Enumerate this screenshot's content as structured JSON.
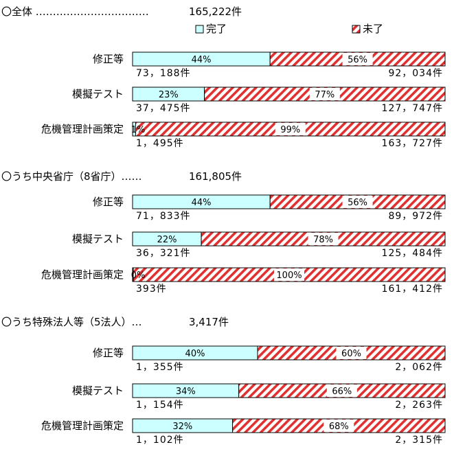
{
  "legend": {
    "done": "完了",
    "notdone": "未了"
  },
  "colors": {
    "done": "#ccffff",
    "notdone_stripe": "#e03030",
    "notdone_bg": "#ffffff",
    "border": "#000000"
  },
  "chart_data": {
    "type": "bar",
    "orientation": "horizontal",
    "stacked": "100%",
    "series_names": [
      "完了",
      "未了"
    ],
    "groups": [
      {
        "title": "〇全体 ……………………………",
        "total": "165,222件",
        "rows": [
          {
            "label": "修正等",
            "done_pct": 44,
            "done_pct_label": "44%",
            "notdone_pct_label": "56%",
            "done_count": "73，188件",
            "notdone_count": "92，034件"
          },
          {
            "label": "模擬テスト",
            "done_pct": 23,
            "done_pct_label": "23%",
            "notdone_pct_label": "77%",
            "done_count": "37，475件",
            "notdone_count": "127，747件"
          },
          {
            "label": "危機管理計画策定",
            "done_pct": 1,
            "done_pct_label": "1%",
            "notdone_pct_label": "99%",
            "done_count": "1，495件",
            "notdone_count": "163，727件"
          }
        ]
      },
      {
        "title": "〇うち中央省庁（8省庁）……",
        "total": "161,805件",
        "rows": [
          {
            "label": "修正等",
            "done_pct": 44,
            "done_pct_label": "44%",
            "notdone_pct_label": "56%",
            "done_count": "71，833件",
            "notdone_count": "89，972件"
          },
          {
            "label": "模擬テスト",
            "done_pct": 22,
            "done_pct_label": "22%",
            "notdone_pct_label": "78%",
            "done_count": "36，321件",
            "notdone_count": "125，484件"
          },
          {
            "label": "危機管理計画策定",
            "done_pct": 0,
            "done_pct_label": "0%",
            "notdone_pct_label": "100%",
            "done_count": "393件",
            "notdone_count": "161，412件"
          }
        ]
      },
      {
        "title": "〇うち特殊法人等（5法人）…",
        "total": "3,417件",
        "rows": [
          {
            "label": "修正等",
            "done_pct": 40,
            "done_pct_label": "40%",
            "notdone_pct_label": "60%",
            "done_count": "1，355件",
            "notdone_count": "2，062件"
          },
          {
            "label": "模擬テスト",
            "done_pct": 34,
            "done_pct_label": "34%",
            "notdone_pct_label": "66%",
            "done_count": "1，154件",
            "notdone_count": "2，263件"
          },
          {
            "label": "危機管理計画策定",
            "done_pct": 32,
            "done_pct_label": "32%",
            "notdone_pct_label": "68%",
            "done_count": "1，102件",
            "notdone_count": "2，315件"
          }
        ]
      }
    ]
  }
}
